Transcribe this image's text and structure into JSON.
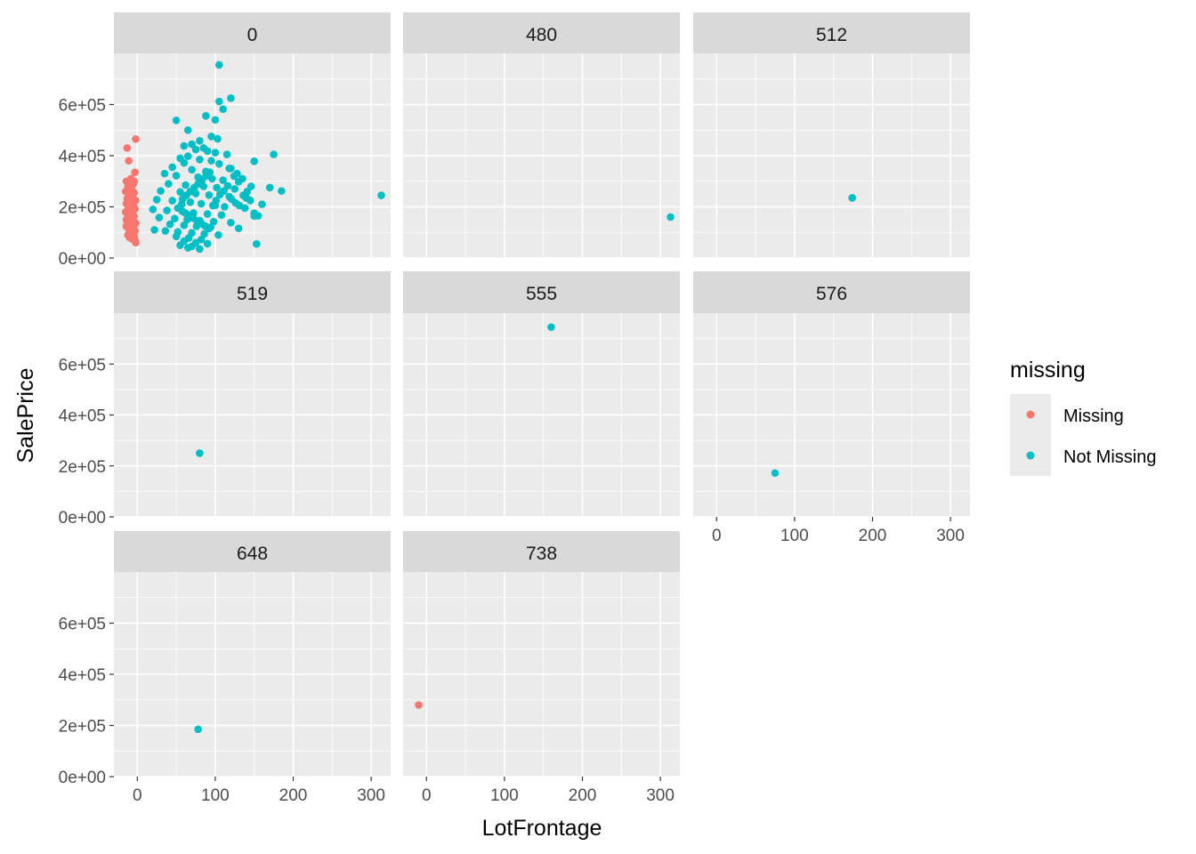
{
  "chart_data": {
    "type": "scatter",
    "facet_variable_values": [
      "0",
      "480",
      "512",
      "519",
      "555",
      "576",
      "648",
      "738"
    ],
    "xlabel": "LotFrontage",
    "ylabel": "SalePrice",
    "xlim": [
      -30,
      325
    ],
    "ylim": [
      0,
      800000
    ],
    "x_ticks": [
      0,
      100,
      200,
      300
    ],
    "x_tick_labels": [
      "0",
      "100",
      "200",
      "300"
    ],
    "y_ticks": [
      0,
      200000,
      400000,
      600000
    ],
    "y_tick_labels": [
      "0e+00",
      "2e+05",
      "4e+05",
      "6e+05"
    ],
    "grid": true,
    "legend": {
      "title": "missing",
      "position": "right",
      "entries": [
        {
          "label": "Missing",
          "color": "#F8766D"
        },
        {
          "label": "Not Missing",
          "color": "#00BFC4"
        }
      ]
    },
    "panels": [
      {
        "label": "0",
        "series": [
          {
            "name": "Missing",
            "points": [
              [
                -13,
                430000
              ],
              [
                -11,
                380000
              ],
              [
                -2,
                465000
              ],
              [
                -3,
                335000
              ],
              [
                -8,
                310000
              ],
              [
                -14,
                300000
              ],
              [
                -5,
                290000
              ],
              [
                -12,
                280000
              ],
              [
                -7,
                270000
              ],
              [
                -15,
                260000
              ],
              [
                -4,
                255000
              ],
              [
                -10,
                245000
              ],
              [
                -6,
                240000
              ],
              [
                -13,
                232000
              ],
              [
                -2,
                225000
              ],
              [
                -9,
                218000
              ],
              [
                -14,
                212000
              ],
              [
                -5,
                205000
              ],
              [
                -11,
                198000
              ],
              [
                -3,
                192000
              ],
              [
                -8,
                186000
              ],
              [
                -15,
                180000
              ],
              [
                -6,
                175000
              ],
              [
                -12,
                168000
              ],
              [
                -4,
                162000
              ],
              [
                -10,
                155000
              ],
              [
                -7,
                148000
              ],
              [
                -13,
                142000
              ],
              [
                -2,
                136000
              ],
              [
                -9,
                130000
              ],
              [
                -14,
                124000
              ],
              [
                -5,
                118000
              ],
              [
                -11,
                112000
              ],
              [
                -3,
                106000
              ],
              [
                -8,
                100000
              ],
              [
                -6,
                95000
              ],
              [
                -12,
                90000
              ],
              [
                -4,
                85000
              ],
              [
                -10,
                80000
              ],
              [
                -7,
                75000
              ],
              [
                -3,
                70000
              ],
              [
                -9,
                88000
              ],
              [
                -2,
                60000
              ],
              [
                -14,
                150000
              ],
              [
                -6,
                215000
              ],
              [
                -11,
                265000
              ],
              [
                -4,
                300000
              ],
              [
                -8,
                245000
              ]
            ]
          },
          {
            "name": "Not Missing",
            "points": [
              [
                105,
                755000
              ],
              [
                105,
                612000
              ],
              [
                120,
                625000
              ],
              [
                110,
                582000
              ],
              [
                88,
                556000
              ],
              [
                50,
                538000
              ],
              [
                100,
                540000
              ],
              [
                65,
                500000
              ],
              [
                95,
                475000
              ],
              [
                103,
                466000
              ],
              [
                80,
                458000
              ],
              [
                70,
                445000
              ],
              [
                60,
                438000
              ],
              [
                85,
                430000
              ],
              [
                75,
                424000
              ],
              [
                90,
                418000
              ],
              [
                100,
                412000
              ],
              [
                115,
                405000
              ],
              [
                65,
                398000
              ],
              [
                55,
                390000
              ],
              [
                80,
                385000
              ],
              [
                95,
                380000
              ],
              [
                60,
                372000
              ],
              [
                105,
                368000
              ],
              [
                45,
                355000
              ],
              [
                120,
                350000
              ],
              [
                70,
                345000
              ],
              [
                88,
                338000
              ],
              [
                35,
                330000
              ],
              [
                50,
                322000
              ],
              [
                78,
                316000
              ],
              [
                96,
                310000
              ],
              [
                110,
                304000
              ],
              [
                130,
                298000
              ],
              [
                40,
                290000
              ],
              [
                62,
                285000
              ],
              [
                85,
                280000
              ],
              [
                102,
                275000
              ],
              [
                125,
                270000
              ],
              [
                30,
                262000
              ],
              [
                55,
                258000
              ],
              [
                75,
                252000
              ],
              [
                92,
                246000
              ],
              [
                118,
                240000
              ],
              [
                140,
                234000
              ],
              [
                25,
                228000
              ],
              [
                45,
                224000
              ],
              [
                68,
                218000
              ],
              [
                82,
                212000
              ],
              [
                100,
                206000
              ],
              [
                112,
                200000
              ],
              [
                138,
                195000
              ],
              [
                20,
                190000
              ],
              [
                38,
                186000
              ],
              [
                58,
                182000
              ],
              [
                72,
                176000
              ],
              [
                90,
                172000
              ],
              [
                108,
                168000
              ],
              [
                150,
                164000
              ],
              [
                28,
                158000
              ],
              [
                48,
                154000
              ],
              [
                64,
                150000
              ],
              [
                80,
                146000
              ],
              [
                98,
                142000
              ],
              [
                120,
                138000
              ],
              [
                42,
                132000
              ],
              [
                60,
                128000
              ],
              [
                76,
                124000
              ],
              [
                94,
                120000
              ],
              [
                130,
                116000
              ],
              [
                22,
                110000
              ],
              [
                36,
                106000
              ],
              [
                52,
                102000
              ],
              [
                70,
                98000
              ],
              [
                86,
                94000
              ],
              [
                104,
                90000
              ],
              [
                50,
                84000
              ],
              [
                66,
                78000
              ],
              [
                82,
                72000
              ],
              [
                60,
                66000
              ],
              [
                75,
                60000
              ],
              [
                90,
                56000
              ],
              [
                55,
                50000
              ],
              [
                70,
                45000
              ],
              [
                65,
                40000
              ],
              [
                80,
                35000
              ],
              [
                58,
                230000
              ],
              [
                63,
                245000
              ],
              [
                68,
                260000
              ],
              [
                73,
                275000
              ],
              [
                78,
                290000
              ],
              [
                83,
                305000
              ],
              [
                88,
                320000
              ],
              [
                93,
                335000
              ],
              [
                52,
                195000
              ],
              [
                57,
                210000
              ],
              [
                62,
                175000
              ],
              [
                67,
                165000
              ],
              [
                72,
                155000
              ],
              [
                77,
                145000
              ],
              [
                82,
                135000
              ],
              [
                87,
                125000
              ],
              [
                92,
                115000
              ],
              [
                97,
                205000
              ],
              [
                101,
                225000
              ],
              [
                106,
                248000
              ],
              [
                111,
                262000
              ],
              [
                116,
                282000
              ],
              [
                121,
                230000
              ],
              [
                126,
                215000
              ],
              [
                131,
                205000
              ],
              [
                136,
                245000
              ],
              [
                141,
                260000
              ],
              [
                146,
                280000
              ],
              [
                175,
                405000
              ],
              [
                150,
                378000
              ],
              [
                185,
                262000
              ],
              [
                170,
                275000
              ],
              [
                150,
                175000
              ],
              [
                155,
                165000
              ],
              [
                153,
                55000
              ],
              [
                313,
                245000
              ],
              [
                160,
                210000
              ],
              [
                145,
                225000
              ],
              [
                128,
                330000
              ],
              [
                135,
                310000
              ],
              [
                118,
                350000
              ],
              [
                124,
                320000
              ]
            ]
          }
        ]
      },
      {
        "label": "480",
        "series": [
          {
            "name": "Not Missing",
            "points": [
              [
                313,
                160000
              ]
            ]
          }
        ]
      },
      {
        "label": "512",
        "series": [
          {
            "name": "Not Missing",
            "points": [
              [
                174,
                235000
              ]
            ]
          }
        ]
      },
      {
        "label": "519",
        "series": [
          {
            "name": "Not Missing",
            "points": [
              [
                80,
                250000
              ]
            ]
          }
        ]
      },
      {
        "label": "555",
        "series": [
          {
            "name": "Not Missing",
            "points": [
              [
                160,
                745000
              ]
            ]
          }
        ]
      },
      {
        "label": "576",
        "series": [
          {
            "name": "Not Missing",
            "points": [
              [
                75,
                172000
              ]
            ]
          }
        ]
      },
      {
        "label": "648",
        "series": [
          {
            "name": "Not Missing",
            "points": [
              [
                78,
                185000
              ]
            ]
          }
        ]
      },
      {
        "label": "738",
        "series": [
          {
            "name": "Missing",
            "points": [
              [
                -10,
                280000
              ]
            ]
          }
        ]
      }
    ]
  }
}
